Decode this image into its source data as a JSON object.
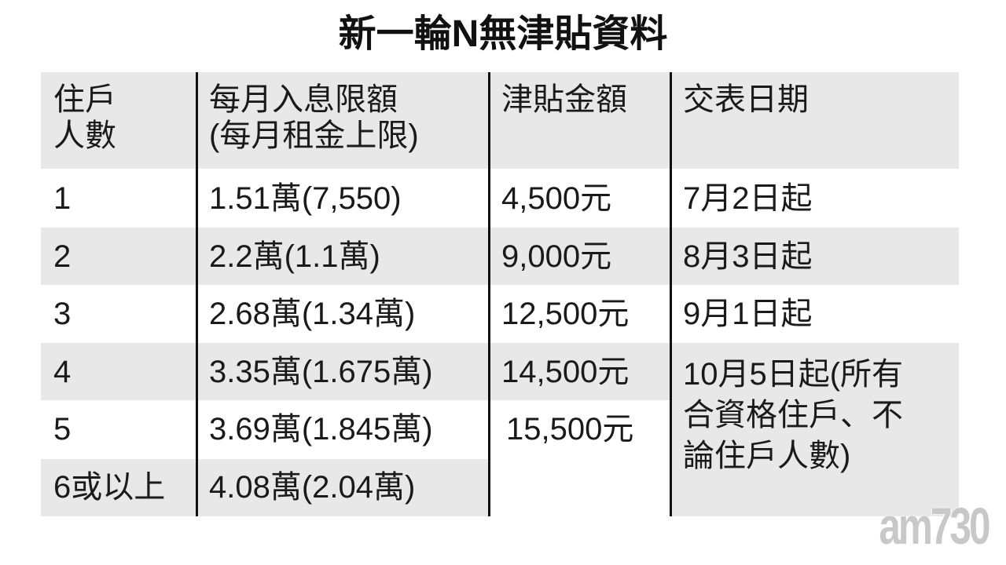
{
  "title": "新一輪N無津貼資料",
  "table": {
    "headers": [
      "住戶\n人數",
      "每月入息限額\n(每月租金上限)",
      "津貼金額",
      "交表日期"
    ],
    "header_lines": [
      [
        "住戶",
        "人數"
      ],
      [
        "每月入息限額",
        "(每月租金上限)"
      ],
      [
        "津貼金額"
      ],
      [
        "交表日期"
      ]
    ],
    "rows": [
      {
        "household": "1",
        "income_limit": "1.51萬(7,550)",
        "subsidy": "4,500元",
        "date": "7月2日起"
      },
      {
        "household": "2",
        "income_limit": "2.2萬(1.1萬)",
        "subsidy": "9,000元",
        "date": "8月3日起"
      },
      {
        "household": "3",
        "income_limit": "2.68萬(1.34萬)",
        "subsidy": "12,500元",
        "date": "9月1日起"
      },
      {
        "household": "4",
        "income_limit": "3.35萬(1.675萬)",
        "subsidy": "14,500元",
        "date": ""
      },
      {
        "household": "5",
        "income_limit": "3.69萬(1.845萬)",
        "subsidy": "",
        "date": ""
      },
      {
        "household": "6或以上",
        "income_limit": "4.08萬(2.04萬)",
        "subsidy": "",
        "date": ""
      }
    ],
    "merged_subsidy_5_6": "15,500元",
    "merged_date_4_6_lines": [
      "10月5日起(所有",
      "合資格住戶、不",
      "論住戶人數)"
    ]
  },
  "colors": {
    "row_shade": "#e8e8e8",
    "rule": "#111111"
  },
  "watermark": "am730"
}
